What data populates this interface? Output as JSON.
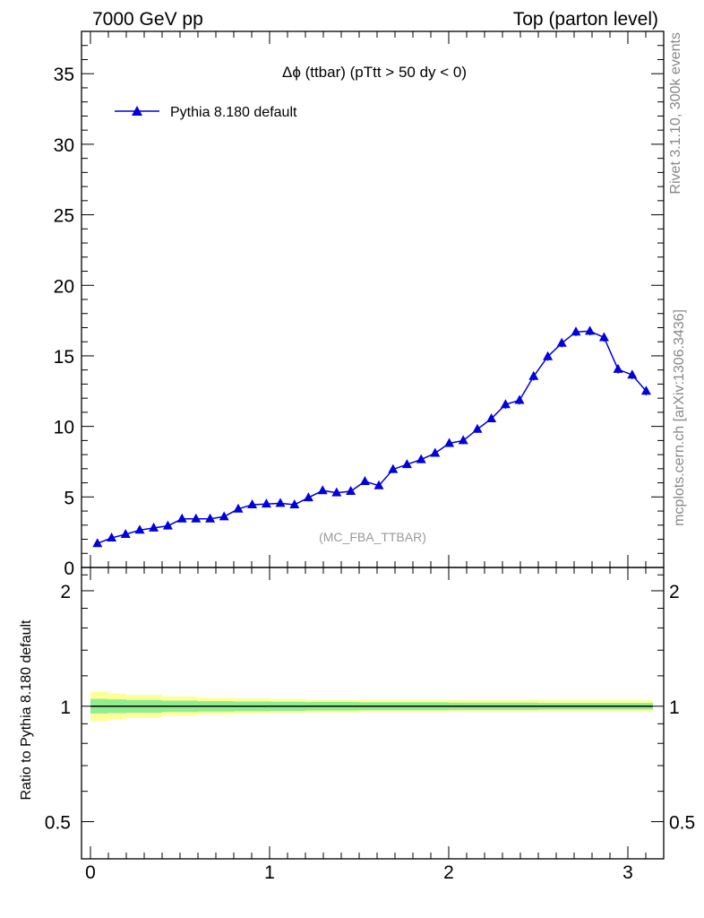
{
  "header": {
    "left": "7000 GeV pp",
    "right": "Top (parton level)"
  },
  "side_labels": {
    "top": "Rivet 3.1.10,  300k events",
    "bottom": "mcplots.cern.ch [arXiv:1306.3436]"
  },
  "colors": {
    "series": "#0000dd",
    "band_inner": "#90ee90",
    "band_outer": "#ffff99",
    "grey_text": "#999999"
  },
  "chart_data": [
    {
      "type": "line",
      "title": "Δϕ (ttbar) (pTtt > 50 dy < 0)",
      "watermark": "(MC_FBA_TTBAR)",
      "xlim": [
        -0.05,
        3.2
      ],
      "ylim": [
        0,
        38
      ],
      "yticks": [
        0,
        5,
        10,
        15,
        20,
        25,
        30,
        35
      ],
      "ytick_labels": [
        "0",
        "5",
        "10",
        "15",
        "20",
        "25",
        "30",
        "35"
      ],
      "legend_position": "top-left",
      "series": [
        {
          "name": "Pythia 8.180 default",
          "marker": "triangle",
          "x": [
            0.039,
            0.118,
            0.196,
            0.275,
            0.353,
            0.432,
            0.511,
            0.589,
            0.668,
            0.746,
            0.825,
            0.903,
            0.982,
            1.06,
            1.139,
            1.217,
            1.296,
            1.374,
            1.453,
            1.532,
            1.61,
            1.689,
            1.767,
            1.846,
            1.924,
            2.003,
            2.081,
            2.16,
            2.238,
            2.317,
            2.395,
            2.474,
            2.553,
            2.631,
            2.71,
            2.788,
            2.867,
            2.945,
            3.024,
            3.102
          ],
          "y": [
            1.7,
            2.1,
            2.35,
            2.65,
            2.8,
            2.95,
            3.45,
            3.45,
            3.45,
            3.6,
            4.15,
            4.45,
            4.5,
            4.55,
            4.45,
            4.95,
            5.45,
            5.3,
            5.4,
            6.1,
            5.8,
            6.95,
            7.3,
            7.65,
            8.1,
            8.8,
            9.0,
            9.8,
            10.55,
            11.55,
            11.85,
            13.55,
            14.95,
            15.9,
            16.7,
            16.75,
            16.3,
            14.05,
            13.65,
            12.5
          ],
          "yerr": [
            0.15,
            0.15,
            0.15,
            0.15,
            0.15,
            0.15,
            0.15,
            0.15,
            0.15,
            0.15,
            0.2,
            0.2,
            0.2,
            0.2,
            0.2,
            0.2,
            0.2,
            0.2,
            0.2,
            0.2,
            0.2,
            0.2,
            0.2,
            0.2,
            0.2,
            0.25,
            0.25,
            0.25,
            0.25,
            0.3,
            0.3,
            0.3,
            0.3,
            0.3,
            0.3,
            0.3,
            0.3,
            0.3,
            0.3,
            0.3
          ]
        }
      ]
    },
    {
      "type": "area",
      "ylabel": "Ratio to Pythia 8.180 default",
      "scale": "log",
      "xlim": [
        -0.05,
        3.2
      ],
      "ylim": [
        0.4,
        2.3
      ],
      "xticks": [
        0,
        1,
        2,
        3
      ],
      "xtick_labels": [
        "0",
        "1",
        "2",
        "3"
      ],
      "yticks": [
        0.5,
        1,
        2
      ],
      "ytick_labels": [
        "0.5",
        "1",
        "2"
      ],
      "reference": 1,
      "band_x_edges": [
        0,
        0.1,
        0.2,
        0.4,
        0.6,
        0.8,
        1.0,
        1.2,
        1.5,
        2.0,
        2.5,
        3.14
      ],
      "band_inner_lo": [
        0.957,
        0.96,
        0.962,
        0.966,
        0.968,
        0.97,
        0.972,
        0.974,
        0.976,
        0.978,
        0.98
      ],
      "band_inner_hi": [
        1.045,
        1.042,
        1.038,
        1.034,
        1.031,
        1.029,
        1.027,
        1.026,
        1.024,
        1.022,
        1.02
      ],
      "band_outer_lo": [
        0.915,
        0.925,
        0.935,
        0.945,
        0.952,
        0.956,
        0.96,
        0.963,
        0.966,
        0.968,
        0.97
      ],
      "band_outer_hi": [
        1.09,
        1.08,
        1.07,
        1.06,
        1.053,
        1.048,
        1.045,
        1.042,
        1.04,
        1.038,
        1.036
      ]
    }
  ]
}
